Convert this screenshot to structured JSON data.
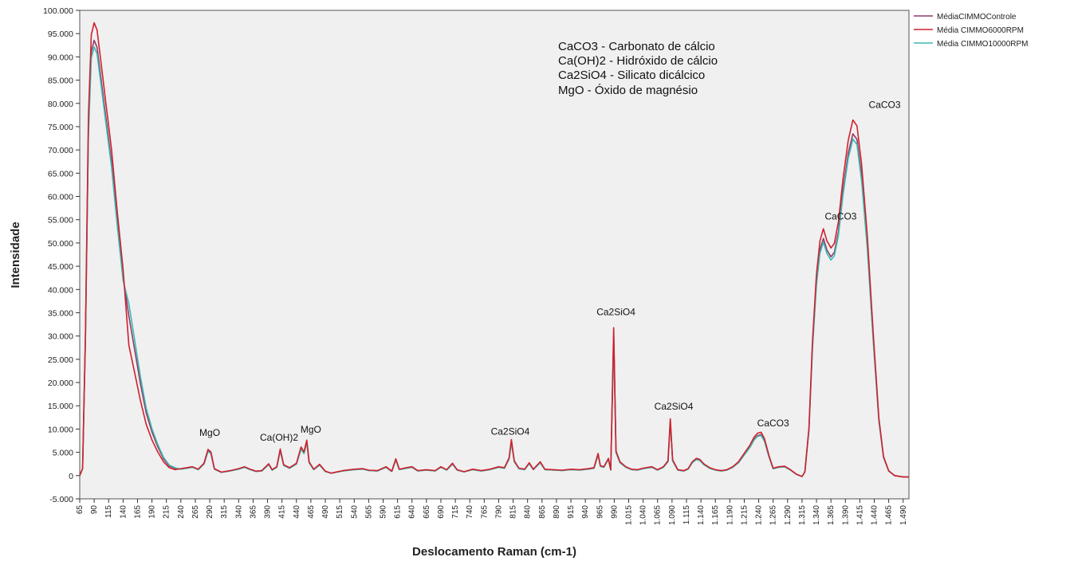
{
  "chart_data": {
    "type": "line",
    "title": "",
    "xlabel": "Deslocamento Raman (cm-1)",
    "ylabel": "Intensidade",
    "xlim": [
      65,
      1500
    ],
    "ylim": [
      -5000,
      100000
    ],
    "y_ticks": [
      "100.000",
      "95.000",
      "90.000",
      "85.000",
      "80.000",
      "75.000",
      "70.000",
      "65.000",
      "60.000",
      "55.000",
      "50.000",
      "45.000",
      "40.000",
      "35.000",
      "30.000",
      "25.000",
      "20.000",
      "15.000",
      "10.000",
      "5.000",
      "0",
      "-5.000"
    ],
    "x_ticks": [
      "65",
      "90",
      "115",
      "140",
      "165",
      "190",
      "215",
      "240",
      "265",
      "290",
      "315",
      "340",
      "365",
      "390",
      "415",
      "440",
      "465",
      "490",
      "515",
      "540",
      "565",
      "590",
      "615",
      "640",
      "665",
      "690",
      "715",
      "740",
      "765",
      "790",
      "815",
      "840",
      "865",
      "890",
      "915",
      "940",
      "965",
      "990",
      "1.015",
      "1.040",
      "1.065",
      "1.090",
      "1.115",
      "1.140",
      "1.165",
      "1.190",
      "1.215",
      "1.240",
      "1.265",
      "1.290",
      "1.315",
      "1.340",
      "1.365",
      "1.390",
      "1.415",
      "1.440",
      "1.465",
      "1.490"
    ],
    "grid": false,
    "legend_position": "top-right-outside",
    "legend_box_lines": [
      "CaCO3 - Carbonato de cálcio",
      "Ca(OH)2 - Hidróxido de cálcio",
      "Ca2SiO4 - Silicato dicálcico",
      "MgO - Óxido de magnésio"
    ],
    "annotations": [
      {
        "text": "MgO",
        "x": 290,
        "y": 8500
      },
      {
        "text": "Ca(OH)2",
        "x": 410,
        "y": 7500
      },
      {
        "text": "MgO",
        "x": 465,
        "y": 9200
      },
      {
        "text": "Ca2SiO4",
        "x": 810,
        "y": 8800
      },
      {
        "text": "Ca2SiO4",
        "x": 993,
        "y": 34500
      },
      {
        "text": "Ca2SiO4",
        "x": 1093,
        "y": 14200
      },
      {
        "text": "CaCO3",
        "x": 1265,
        "y": 10600
      },
      {
        "text": "CaCO3",
        "x": 1382,
        "y": 55000
      },
      {
        "text": "CaCO3",
        "x": 1458,
        "y": 79000
      }
    ],
    "base_profile": [
      [
        65,
        0
      ],
      [
        70,
        1500
      ],
      [
        75,
        30000
      ],
      [
        80,
        75000
      ],
      [
        85,
        92000
      ],
      [
        90,
        94500
      ],
      [
        95,
        93000
      ],
      [
        100,
        88000
      ],
      [
        110,
        78000
      ],
      [
        120,
        68000
      ],
      [
        130,
        55000
      ],
      [
        140,
        43000
      ],
      [
        150,
        33000
      ],
      [
        160,
        26000
      ],
      [
        170,
        19000
      ],
      [
        180,
        13000
      ],
      [
        190,
        9000
      ],
      [
        200,
        6000
      ],
      [
        210,
        3500
      ],
      [
        220,
        2000
      ],
      [
        230,
        1500
      ],
      [
        240,
        1400
      ],
      [
        250,
        1600
      ],
      [
        260,
        1800
      ],
      [
        270,
        1300
      ],
      [
        280,
        2500
      ],
      [
        287,
        5300
      ],
      [
        292,
        4800
      ],
      [
        298,
        1400
      ],
      [
        310,
        700
      ],
      [
        325,
        1000
      ],
      [
        340,
        1400
      ],
      [
        350,
        1800
      ],
      [
        360,
        1300
      ],
      [
        370,
        900
      ],
      [
        380,
        1000
      ],
      [
        392,
        2400
      ],
      [
        398,
        1200
      ],
      [
        406,
        1800
      ],
      [
        412,
        5400
      ],
      [
        418,
        2200
      ],
      [
        428,
        1600
      ],
      [
        440,
        2500
      ],
      [
        448,
        5800
      ],
      [
        453,
        4800
      ],
      [
        458,
        7200
      ],
      [
        462,
        2800
      ],
      [
        470,
        1300
      ],
      [
        480,
        2300
      ],
      [
        490,
        900
      ],
      [
        500,
        500
      ],
      [
        520,
        1000
      ],
      [
        540,
        1300
      ],
      [
        555,
        1400
      ],
      [
        565,
        1100
      ],
      [
        580,
        1000
      ],
      [
        595,
        1800
      ],
      [
        605,
        900
      ],
      [
        612,
        3400
      ],
      [
        618,
        1300
      ],
      [
        630,
        1600
      ],
      [
        640,
        1800
      ],
      [
        650,
        1000
      ],
      [
        665,
        1200
      ],
      [
        680,
        1000
      ],
      [
        690,
        1800
      ],
      [
        700,
        1200
      ],
      [
        710,
        2500
      ],
      [
        718,
        1200
      ],
      [
        730,
        800
      ],
      [
        745,
        1300
      ],
      [
        760,
        1000
      ],
      [
        775,
        1300
      ],
      [
        790,
        1800
      ],
      [
        800,
        1600
      ],
      [
        808,
        3600
      ],
      [
        812,
        7300
      ],
      [
        817,
        3000
      ],
      [
        825,
        1500
      ],
      [
        835,
        1300
      ],
      [
        843,
        2600
      ],
      [
        850,
        1300
      ],
      [
        862,
        2800
      ],
      [
        870,
        1300
      ],
      [
        885,
        1200
      ],
      [
        900,
        1100
      ],
      [
        915,
        1300
      ],
      [
        930,
        1200
      ],
      [
        945,
        1400
      ],
      [
        955,
        1600
      ],
      [
        962,
        4500
      ],
      [
        966,
        2000
      ],
      [
        972,
        1800
      ],
      [
        980,
        3500
      ],
      [
        984,
        1200
      ],
      [
        989,
        30000
      ],
      [
        993,
        5000
      ],
      [
        1000,
        2800
      ],
      [
        1010,
        1800
      ],
      [
        1020,
        1300
      ],
      [
        1030,
        1200
      ],
      [
        1040,
        1500
      ],
      [
        1055,
        1800
      ],
      [
        1065,
        1200
      ],
      [
        1075,
        1800
      ],
      [
        1083,
        3000
      ],
      [
        1087,
        11500
      ],
      [
        1091,
        3200
      ],
      [
        1100,
        1200
      ],
      [
        1110,
        1000
      ],
      [
        1118,
        1400
      ],
      [
        1125,
        2800
      ],
      [
        1132,
        3500
      ],
      [
        1138,
        3300
      ],
      [
        1145,
        2400
      ],
      [
        1155,
        1600
      ],
      [
        1165,
        1200
      ],
      [
        1175,
        1000
      ],
      [
        1185,
        1200
      ],
      [
        1195,
        1800
      ],
      [
        1205,
        2800
      ],
      [
        1215,
        4500
      ],
      [
        1225,
        6200
      ],
      [
        1232,
        7800
      ],
      [
        1238,
        8600
      ],
      [
        1244,
        8800
      ],
      [
        1250,
        7500
      ],
      [
        1258,
        4000
      ],
      [
        1265,
        1500
      ],
      [
        1275,
        1800
      ],
      [
        1285,
        1900
      ],
      [
        1295,
        1200
      ],
      [
        1305,
        300
      ],
      [
        1315,
        -200
      ],
      [
        1320,
        800
      ],
      [
        1327,
        10000
      ],
      [
        1333,
        28000
      ],
      [
        1340,
        42000
      ],
      [
        1346,
        49000
      ],
      [
        1352,
        51500
      ],
      [
        1358,
        49000
      ],
      [
        1365,
        47500
      ],
      [
        1371,
        48500
      ],
      [
        1378,
        53000
      ],
      [
        1386,
        62000
      ],
      [
        1395,
        70000
      ],
      [
        1403,
        74200
      ],
      [
        1410,
        73000
      ],
      [
        1418,
        65000
      ],
      [
        1428,
        50000
      ],
      [
        1438,
        30000
      ],
      [
        1448,
        12000
      ],
      [
        1456,
        4000
      ],
      [
        1465,
        1000
      ],
      [
        1475,
        0
      ],
      [
        1490,
        -300
      ],
      [
        1500,
        -300
      ]
    ],
    "series": [
      {
        "name": "MédiaCIMMOControle",
        "color": "#8e3a6a",
        "scale_main": 0.99,
        "scale_low": 1.0,
        "scale_tail": 1.04
      },
      {
        "name": "Média CIMMO6000RPM",
        "color": "#d0202c",
        "scale_main": 1.03,
        "scale_low": 1.06,
        "scale_tail": 0.85
      },
      {
        "name": "Média CIMMO10000RPM",
        "color": "#3bb8b2",
        "scale_main": 0.975,
        "scale_low": 0.98,
        "scale_tail": 1.12
      }
    ]
  }
}
